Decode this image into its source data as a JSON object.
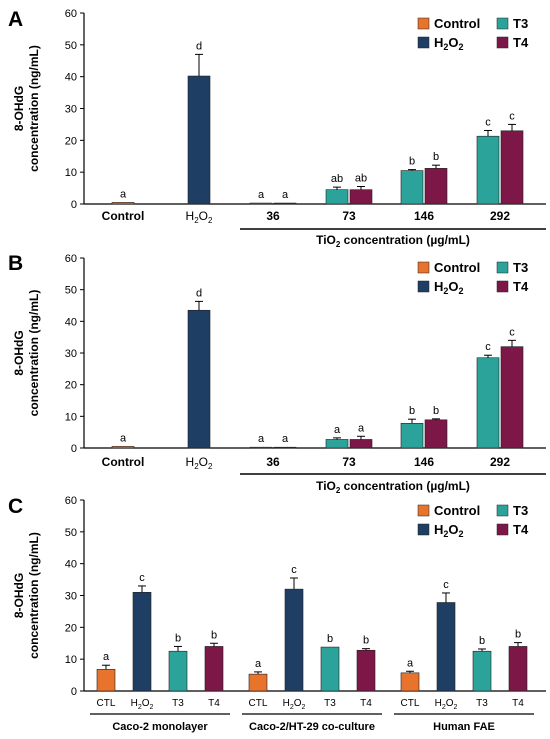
{
  "legend_labels": {
    "control": "Control",
    "h2o2_base": "H",
    "h2o2_sub2a": "2",
    "h2o2_mid": "O",
    "h2o2_sub2b": "2",
    "t3": "T3",
    "t4": "T4"
  },
  "y_label_line1": "8-OHdG",
  "y_label_line2": "concentration (ng/mL)",
  "tio2_axis": {
    "prefix": "TiO",
    "sub": "2",
    "suffix": " concentration (µg/mL)"
  },
  "h2o2_category": {
    "base": "H",
    "sub1": "2",
    "mid": "O",
    "sub2": "2"
  },
  "colors": {
    "control": "#E8732C",
    "h2o2": "#1F3E64",
    "t3": "#2BA39B",
    "t4": "#7D1748"
  },
  "chart_data": [
    {
      "panel": "A",
      "type": "bar",
      "ylim": [
        0,
        60
      ],
      "yticks": [
        0,
        10,
        20,
        30,
        40,
        50,
        60
      ],
      "ylabel": "8-OHdG concentration (ng/mL)",
      "xlabel": "TiO2 concentration (µg/mL)",
      "categories": [
        "Control",
        "H2O2",
        "36",
        "73",
        "146",
        "292"
      ],
      "bars": [
        {
          "category": "Control",
          "series": "Control",
          "value": 0.5,
          "error": 0,
          "letter": "a"
        },
        {
          "category": "H2O2",
          "series": "H2O2",
          "value": 40.2,
          "error": 6.8,
          "letter": "d"
        },
        {
          "category": "36",
          "series": "T3",
          "value": 0.3,
          "error": 0,
          "letter": "a"
        },
        {
          "category": "36",
          "series": "T4",
          "value": 0.3,
          "error": 0,
          "letter": "a"
        },
        {
          "category": "73",
          "series": "T3",
          "value": 4.5,
          "error": 0.8,
          "letter": "ab"
        },
        {
          "category": "73",
          "series": "T4",
          "value": 4.5,
          "error": 1.0,
          "letter": "ab"
        },
        {
          "category": "146",
          "series": "T3",
          "value": 10.5,
          "error": 0.3,
          "letter": "b"
        },
        {
          "category": "146",
          "series": "T4",
          "value": 11.2,
          "error": 1.0,
          "letter": "b"
        },
        {
          "category": "292",
          "series": "T3",
          "value": 21.3,
          "error": 1.8,
          "letter": "c"
        },
        {
          "category": "292",
          "series": "T4",
          "value": 23.0,
          "error": 2.0,
          "letter": "c"
        }
      ]
    },
    {
      "panel": "B",
      "type": "bar",
      "ylim": [
        0,
        60
      ],
      "yticks": [
        0,
        10,
        20,
        30,
        40,
        50,
        60
      ],
      "ylabel": "8-OHdG concentration (ng/mL)",
      "xlabel": "TiO2 concentration (µg/mL)",
      "categories": [
        "Control",
        "H2O2",
        "36",
        "73",
        "146",
        "292"
      ],
      "bars": [
        {
          "category": "Control",
          "series": "Control",
          "value": 0.5,
          "error": 0,
          "letter": "a"
        },
        {
          "category": "H2O2",
          "series": "H2O2",
          "value": 43.5,
          "error": 2.8,
          "letter": "d"
        },
        {
          "category": "36",
          "series": "T3",
          "value": 0.2,
          "error": 0,
          "letter": "a"
        },
        {
          "category": "36",
          "series": "T4",
          "value": 0.2,
          "error": 0,
          "letter": "a"
        },
        {
          "category": "73",
          "series": "T3",
          "value": 2.7,
          "error": 0.5,
          "letter": "a"
        },
        {
          "category": "73",
          "series": "T4",
          "value": 2.7,
          "error": 1.0,
          "letter": "a"
        },
        {
          "category": "146",
          "series": "T3",
          "value": 7.8,
          "error": 1.3,
          "letter": "b"
        },
        {
          "category": "146",
          "series": "T4",
          "value": 8.9,
          "error": 0.3,
          "letter": "b"
        },
        {
          "category": "292",
          "series": "T3",
          "value": 28.5,
          "error": 0.8,
          "letter": "c"
        },
        {
          "category": "292",
          "series": "T4",
          "value": 32.0,
          "error": 2.0,
          "letter": "c"
        }
      ]
    },
    {
      "panel": "C",
      "type": "bar",
      "ylim": [
        0,
        60
      ],
      "yticks": [
        0,
        10,
        20,
        30,
        40,
        50,
        60
      ],
      "ylabel": "8-OHdG concentration (ng/mL)",
      "groups": [
        "Caco-2 monolayer",
        "Caco-2/HT-29 co-culture",
        "Human FAE"
      ],
      "categories": [
        "CTL",
        "H2O2",
        "T3",
        "T4"
      ],
      "bars": [
        {
          "group": "Caco-2 monolayer",
          "category": "CTL",
          "series": "Control",
          "value": 6.8,
          "error": 1.3,
          "letter": "a"
        },
        {
          "group": "Caco-2 monolayer",
          "category": "H2O2",
          "series": "H2O2",
          "value": 31.0,
          "error": 2.0,
          "letter": "c"
        },
        {
          "group": "Caco-2 monolayer",
          "category": "T3",
          "series": "T3",
          "value": 12.5,
          "error": 1.5,
          "letter": "b"
        },
        {
          "group": "Caco-2 monolayer",
          "category": "T4",
          "series": "T4",
          "value": 14.0,
          "error": 1.0,
          "letter": "b"
        },
        {
          "group": "Caco-2/HT-29 co-culture",
          "category": "CTL",
          "series": "Control",
          "value": 5.3,
          "error": 0.7,
          "letter": "a"
        },
        {
          "group": "Caco-2/HT-29 co-culture",
          "category": "H2O2",
          "series": "H2O2",
          "value": 32.0,
          "error": 3.5,
          "letter": "c"
        },
        {
          "group": "Caco-2/HT-29 co-culture",
          "category": "T3",
          "series": "T3",
          "value": 13.8,
          "error": 0,
          "letter": "b"
        },
        {
          "group": "Caco-2/HT-29 co-culture",
          "category": "T4",
          "series": "T4",
          "value": 12.8,
          "error": 0.5,
          "letter": "b"
        },
        {
          "group": "Human FAE",
          "category": "CTL",
          "series": "Control",
          "value": 5.7,
          "error": 0.5,
          "letter": "a"
        },
        {
          "group": "Human FAE",
          "category": "H2O2",
          "series": "H2O2",
          "value": 27.8,
          "error": 3.0,
          "letter": "c"
        },
        {
          "group": "Human FAE",
          "category": "T3",
          "series": "T3",
          "value": 12.5,
          "error": 0.7,
          "letter": "b"
        },
        {
          "group": "Human FAE",
          "category": "T4",
          "series": "T4",
          "value": 14.0,
          "error": 1.2,
          "letter": "b"
        }
      ]
    }
  ]
}
